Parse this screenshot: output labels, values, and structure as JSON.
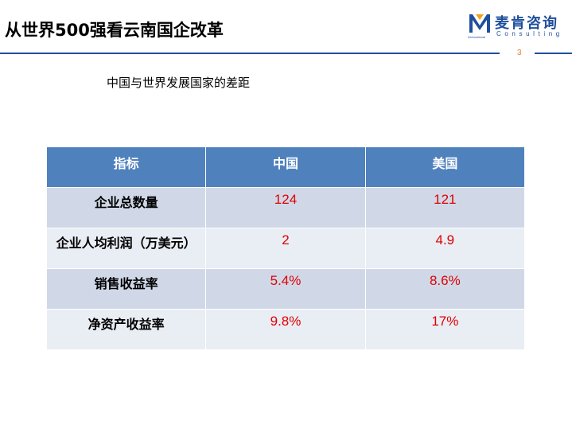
{
  "header": {
    "title": "从世界500强看云南国企改革",
    "logo_cn": "麦肯咨询",
    "logo_en": "Consulting",
    "logo_intl": "International",
    "page_number": "3",
    "brand_color": "#1f4e9c",
    "accent_color": "#e8812b"
  },
  "content": {
    "subtitle": "中国与世界发展国家的差距"
  },
  "table": {
    "headers": [
      "指标",
      "中国",
      "美国"
    ],
    "rows": [
      {
        "label": "企业总数量",
        "china": "124",
        "usa": "121"
      },
      {
        "label": "企业人均利润（万美元）",
        "china": "2",
        "usa": "4.9"
      },
      {
        "label": "销售收益率",
        "china": "5.4%",
        "usa": "8.6%"
      },
      {
        "label": "净资产收益率",
        "china": "9.8%",
        "usa": "17%"
      }
    ],
    "header_bg": "#4f81bd",
    "value_color": "#e00000"
  }
}
